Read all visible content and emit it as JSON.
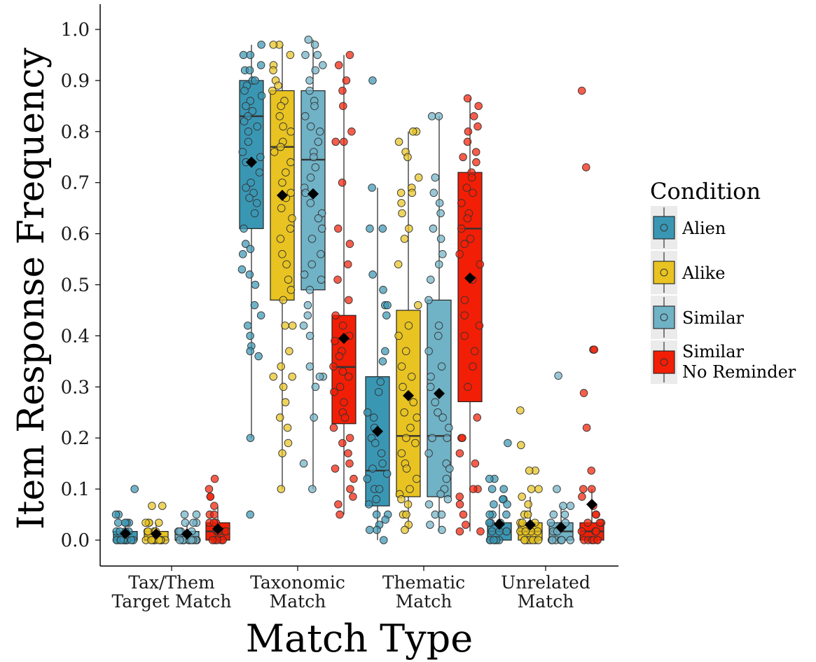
{
  "chart_data": {
    "type": "box",
    "xlabel": "Match Type",
    "ylabel": "Item Response Frequency",
    "ylim": [
      0,
      1.0
    ],
    "y_ticks": [
      "0.0",
      "0.1",
      "0.2",
      "0.3",
      "0.4",
      "0.5",
      "0.6",
      "0.7",
      "0.8",
      "0.9",
      "1.0"
    ],
    "categories": [
      [
        "Tax/Them",
        "Target Match"
      ],
      [
        "Taxonomic",
        "Match"
      ],
      [
        "Thematic",
        "Match"
      ],
      [
        "Unrelated",
        "Match"
      ]
    ],
    "legend": {
      "title": "Condition",
      "position": "right",
      "items": [
        [
          "Alien"
        ],
        [
          "Alike"
        ],
        [
          "Similar"
        ],
        [
          "Similar",
          "No Reminder"
        ]
      ]
    },
    "grid": false,
    "series": [
      {
        "name": "Alien",
        "color": "#3a97b4",
        "boxes": [
          {
            "min": 0.0,
            "q1": 0.0,
            "median": 0.0,
            "q3": 0.017,
            "max": 0.034,
            "mean": 0.013,
            "points": [
              0.0,
              0.0,
              0.0,
              0.0,
              0.0,
              0.0,
              0.0,
              0.0,
              0.0,
              0.0,
              0.0,
              0.0,
              0.017,
              0.017,
              0.017,
              0.017,
              0.034,
              0.034,
              0.034,
              0.034,
              0.05,
              0.05,
              0.1
            ]
          },
          {
            "min": 0.2,
            "q1": 0.61,
            "median": 0.83,
            "q3": 0.9,
            "max": 0.97,
            "mean": 0.74,
            "points": [
              0.97,
              0.95,
              0.95,
              0.93,
              0.92,
              0.92,
              0.9,
              0.9,
              0.89,
              0.88,
              0.87,
              0.86,
              0.85,
              0.84,
              0.83,
              0.82,
              0.81,
              0.8,
              0.78,
              0.76,
              0.75,
              0.74,
              0.72,
              0.7,
              0.69,
              0.68,
              0.67,
              0.66,
              0.64,
              0.61,
              0.58,
              0.57,
              0.56,
              0.53,
              0.52,
              0.5,
              0.46,
              0.44,
              0.42,
              0.4,
              0.38,
              0.37,
              0.36,
              0.2,
              0.05
            ]
          },
          {
            "min": 0.0,
            "q1": 0.067,
            "median": 0.136,
            "q3": 0.32,
            "max": 0.69,
            "mean": 0.213,
            "points": [
              0.9,
              0.69,
              0.61,
              0.61,
              0.52,
              0.49,
              0.46,
              0.46,
              0.44,
              0.37,
              0.35,
              0.31,
              0.29,
              0.25,
              0.24,
              0.22,
              0.2,
              0.19,
              0.17,
              0.15,
              0.14,
              0.13,
              0.12,
              0.1,
              0.1,
              0.08,
              0.07,
              0.05,
              0.05,
              0.04,
              0.03,
              0.02,
              0.02,
              0.0
            ]
          },
          {
            "min": 0.0,
            "q1": 0.0,
            "median": 0.017,
            "q3": 0.034,
            "max": 0.07,
            "mean": 0.031,
            "points": [
              0.19,
              0.12,
              0.12,
              0.1,
              0.1,
              0.08,
              0.08,
              0.07,
              0.07,
              0.05,
              0.05,
              0.05,
              0.034,
              0.034,
              0.034,
              0.017,
              0.017,
              0.017,
              0.017,
              0.0,
              0.0,
              0.0,
              0.0,
              0.0,
              0.0
            ]
          }
        ]
      },
      {
        "name": "Alike",
        "color": "#e8c321",
        "boxes": [
          {
            "min": 0.0,
            "q1": 0.0,
            "median": 0.0,
            "q3": 0.017,
            "max": 0.034,
            "mean": 0.012,
            "points": [
              0.067,
              0.067,
              0.034,
              0.034,
              0.034,
              0.034,
              0.017,
              0.017,
              0.017,
              0.017,
              0.0,
              0.0,
              0.0,
              0.0,
              0.0,
              0.0,
              0.0,
              0.0,
              0.0,
              0.0
            ]
          },
          {
            "min": 0.1,
            "q1": 0.47,
            "median": 0.77,
            "q3": 0.88,
            "max": 0.97,
            "mean": 0.675,
            "points": [
              0.97,
              0.97,
              0.95,
              0.93,
              0.92,
              0.9,
              0.89,
              0.88,
              0.86,
              0.85,
              0.83,
              0.81,
              0.8,
              0.78,
              0.77,
              0.76,
              0.74,
              0.72,
              0.7,
              0.68,
              0.67,
              0.65,
              0.63,
              0.61,
              0.59,
              0.56,
              0.54,
              0.51,
              0.49,
              0.47,
              0.42,
              0.42,
              0.37,
              0.34,
              0.32,
              0.32,
              0.3,
              0.27,
              0.24,
              0.22,
              0.19,
              0.17,
              0.1
            ]
          },
          {
            "min": 0.017,
            "q1": 0.085,
            "median": 0.204,
            "q3": 0.45,
            "max": 0.8,
            "mean": 0.283,
            "points": [
              0.8,
              0.8,
              0.78,
              0.76,
              0.75,
              0.71,
              0.69,
              0.68,
              0.68,
              0.66,
              0.64,
              0.61,
              0.59,
              0.54,
              0.46,
              0.42,
              0.4,
              0.37,
              0.34,
              0.32,
              0.3,
              0.27,
              0.25,
              0.24,
              0.22,
              0.2,
              0.19,
              0.17,
              0.15,
              0.14,
              0.12,
              0.1,
              0.09,
              0.08,
              0.07,
              0.05,
              0.05,
              0.03,
              0.02
            ]
          },
          {
            "min": 0.0,
            "q1": 0.0,
            "median": 0.017,
            "q3": 0.034,
            "max": 0.085,
            "mean": 0.03,
            "points": [
              0.254,
              0.186,
              0.136,
              0.136,
              0.1,
              0.1,
              0.085,
              0.07,
              0.05,
              0.05,
              0.034,
              0.034,
              0.034,
              0.017,
              0.017,
              0.017,
              0.017,
              0.0,
              0.0,
              0.0,
              0.0,
              0.0,
              0.0,
              0.0
            ]
          }
        ]
      },
      {
        "name": "Similar",
        "color": "#70b2c6",
        "boxes": [
          {
            "min": 0.0,
            "q1": 0.0,
            "median": 0.0,
            "q3": 0.017,
            "max": 0.034,
            "mean": 0.012,
            "points": [
              0.05,
              0.05,
              0.034,
              0.034,
              0.034,
              0.017,
              0.017,
              0.017,
              0.017,
              0.0,
              0.0,
              0.0,
              0.0,
              0.0,
              0.0,
              0.0,
              0.0,
              0.0,
              0.0
            ]
          },
          {
            "min": 0.1,
            "q1": 0.49,
            "median": 0.745,
            "q3": 0.88,
            "max": 0.98,
            "mean": 0.678,
            "points": [
              0.98,
              0.97,
              0.95,
              0.95,
              0.93,
              0.92,
              0.9,
              0.88,
              0.86,
              0.85,
              0.83,
              0.81,
              0.8,
              0.78,
              0.76,
              0.75,
              0.73,
              0.71,
              0.69,
              0.68,
              0.66,
              0.64,
              0.63,
              0.61,
              0.59,
              0.56,
              0.54,
              0.52,
              0.51,
              0.49,
              0.46,
              0.44,
              0.42,
              0.4,
              0.34,
              0.32,
              0.32,
              0.3,
              0.24,
              0.15,
              0.1
            ]
          },
          {
            "min": 0.017,
            "q1": 0.085,
            "median": 0.204,
            "q3": 0.47,
            "max": 0.83,
            "mean": 0.287,
            "points": [
              0.83,
              0.83,
              0.71,
              0.68,
              0.66,
              0.64,
              0.61,
              0.59,
              0.56,
              0.54,
              0.51,
              0.47,
              0.42,
              0.4,
              0.37,
              0.34,
              0.32,
              0.3,
              0.27,
              0.25,
              0.24,
              0.22,
              0.2,
              0.2,
              0.17,
              0.15,
              0.14,
              0.12,
              0.1,
              0.09,
              0.08,
              0.07,
              0.05,
              0.05,
              0.03,
              0.02
            ]
          },
          {
            "min": 0.0,
            "q1": 0.0,
            "median": 0.017,
            "q3": 0.034,
            "max": 0.067,
            "mean": 0.025,
            "points": [
              0.322,
              0.1,
              0.067,
              0.067,
              0.05,
              0.05,
              0.034,
              0.034,
              0.017,
              0.017,
              0.017,
              0.0,
              0.0,
              0.0,
              0.0,
              0.0,
              0.0,
              0.0
            ]
          }
        ]
      },
      {
        "name": "Similar No Reminder",
        "color": "#f21e05",
        "boxes": [
          {
            "min": 0.0,
            "q1": 0.0,
            "median": 0.017,
            "q3": 0.034,
            "max": 0.067,
            "mean": 0.022,
            "points": [
              0.12,
              0.1,
              0.085,
              0.085,
              0.067,
              0.05,
              0.05,
              0.034,
              0.034,
              0.034,
              0.017,
              0.017,
              0.017,
              0.017,
              0.0,
              0.0,
              0.0,
              0.0,
              0.0
            ]
          },
          {
            "min": 0.05,
            "q1": 0.228,
            "median": 0.339,
            "q3": 0.44,
            "max": 0.95,
            "mean": 0.395,
            "points": [
              0.95,
              0.93,
              0.9,
              0.88,
              0.85,
              0.8,
              0.78,
              0.78,
              0.7,
              0.61,
              0.58,
              0.54,
              0.51,
              0.47,
              0.44,
              0.42,
              0.4,
              0.39,
              0.37,
              0.36,
              0.34,
              0.33,
              0.32,
              0.3,
              0.29,
              0.27,
              0.25,
              0.24,
              0.22,
              0.2,
              0.19,
              0.17,
              0.15,
              0.14,
              0.12,
              0.1,
              0.085,
              0.07,
              0.05
            ]
          },
          {
            "min": 0.017,
            "q1": 0.271,
            "median": 0.61,
            "q3": 0.72,
            "max": 0.865,
            "mean": 0.513,
            "points": [
              0.865,
              0.85,
              0.83,
              0.81,
              0.8,
              0.78,
              0.76,
              0.75,
              0.74,
              0.72,
              0.71,
              0.69,
              0.68,
              0.66,
              0.64,
              0.63,
              0.61,
              0.59,
              0.58,
              0.56,
              0.54,
              0.51,
              0.47,
              0.44,
              0.42,
              0.4,
              0.37,
              0.34,
              0.3,
              0.24,
              0.2,
              0.2,
              0.17,
              0.15,
              0.1,
              0.1,
              0.085,
              0.07,
              0.05,
              0.03,
              0.017,
              0.017
            ]
          },
          {
            "min": 0.0,
            "q1": 0.0,
            "median": 0.017,
            "q3": 0.034,
            "max": 0.1,
            "mean": 0.07,
            "points": [
              0.88,
              0.73,
              0.373,
              0.373,
              0.288,
              0.22,
              0.136,
              0.1,
              0.1,
              0.085,
              0.067,
              0.05,
              0.05,
              0.034,
              0.034,
              0.034,
              0.017,
              0.017,
              0.017,
              0.0,
              0.0,
              0.0,
              0.0,
              0.0,
              0.0
            ]
          }
        ]
      }
    ]
  }
}
